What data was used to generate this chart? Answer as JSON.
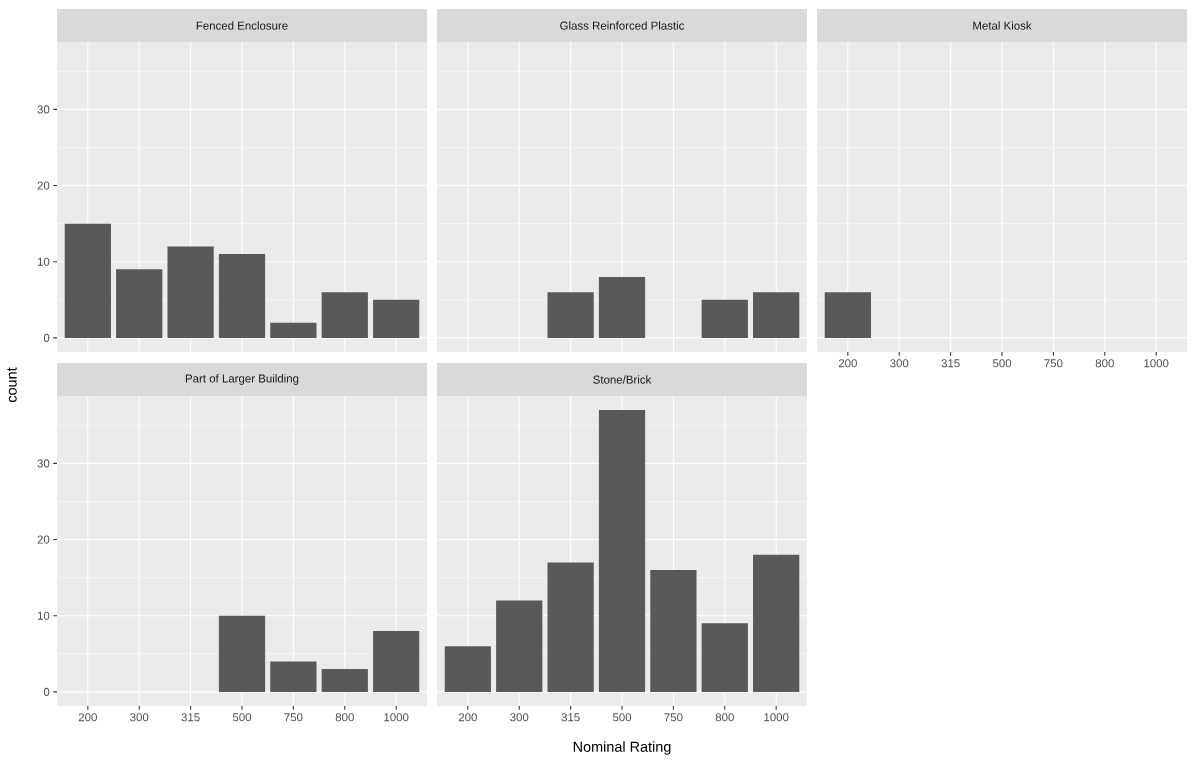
{
  "chart_data": [
    {
      "type": "bar",
      "title": "Fenced Enclosure",
      "categories": [
        "200",
        "300",
        "315",
        "500",
        "750",
        "800",
        "1000"
      ],
      "values": [
        15,
        9,
        12,
        11,
        2,
        6,
        5
      ],
      "color": "#595959",
      "ylim": [
        -1.85,
        38.85
      ],
      "yticks": [
        0,
        10,
        20,
        30,
        {
          "value": 5,
          "label": null
        },
        {
          "value": 15,
          "label": null
        },
        {
          "value": 25,
          "label": null
        },
        {
          "value": 35,
          "label": null
        }
      ],
      "grid": true,
      "tick_labels": "y"
    },
    {
      "type": "bar",
      "title": "Glass Reinforced Plastic",
      "categories": [
        "200",
        "300",
        "315",
        "500",
        "750",
        "800",
        "1000"
      ],
      "values": [
        null,
        null,
        6,
        8,
        null,
        5,
        6
      ],
      "color": "#595959",
      "ylim": [
        -1.85,
        38.85
      ],
      "yticks": [
        0,
        10,
        20,
        30,
        {
          "value": 5,
          "label": null
        },
        {
          "value": 15,
          "label": null
        },
        {
          "value": 25,
          "label": null
        },
        {
          "value": 35,
          "label": null
        }
      ],
      "grid": true,
      "tick_labels": false
    },
    {
      "type": "bar",
      "title": "Metal Kiosk",
      "categories": [
        "200",
        "300",
        "315",
        "500",
        "750",
        "800",
        "1000"
      ],
      "values": [
        6,
        null,
        null,
        null,
        null,
        null,
        null
      ],
      "color": "#595959",
      "ylim": [
        -1.85,
        38.85
      ],
      "yticks": [
        0,
        10,
        20,
        30,
        {
          "value": 5,
          "label": null
        },
        {
          "value": 15,
          "label": null
        },
        {
          "value": 25,
          "label": null
        },
        {
          "value": 35,
          "label": null
        }
      ],
      "grid": true,
      "tick_labels": "x"
    },
    {
      "type": "bar",
      "title": "Part of Larger Building",
      "ylabel": "count",
      "categories": [
        "200",
        "300",
        "315",
        "500",
        "750",
        "800",
        "1000"
      ],
      "values": [
        null,
        null,
        null,
        10,
        4,
        3,
        8
      ],
      "color": "#595959",
      "ylim": [
        -1.85,
        38.85
      ],
      "yticks": [
        0,
        10,
        20,
        30,
        {
          "value": 5,
          "label": null
        },
        {
          "value": 15,
          "label": null
        },
        {
          "value": 25,
          "label": null
        },
        {
          "value": 35,
          "label": null
        }
      ],
      "grid": true
    },
    {
      "type": "bar",
      "title": "Stone/Brick",
      "xlabel": "Nominal Rating",
      "categories": [
        "200",
        "300",
        "315",
        "500",
        "750",
        "800",
        "1000"
      ],
      "values": [
        6,
        12,
        17,
        37,
        16,
        9,
        18
      ],
      "color": "#595959",
      "ylim": [
        -1.85,
        38.85
      ],
      "yticks": [
        0,
        10,
        20,
        30,
        {
          "value": 5,
          "label": null
        },
        {
          "value": 15,
          "label": null
        },
        {
          "value": 25,
          "label": null
        },
        {
          "value": 35,
          "label": null
        }
      ],
      "grid": true,
      "tick_labels": "x"
    }
  ]
}
